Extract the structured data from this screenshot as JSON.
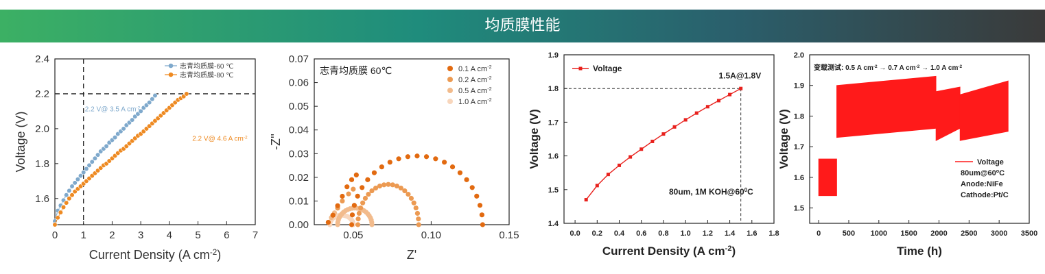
{
  "header": {
    "title": "均质膜性能"
  },
  "chart_data": [
    {
      "id": "chart1",
      "type": "scatter",
      "xlabel": "Current Density (A cm",
      "xlabel_sup": "-2",
      "xlabel_end": ")",
      "ylabel": "Voltage (V)",
      "xlim": [
        0,
        7
      ],
      "ylim": [
        1.45,
        2.4
      ],
      "xticks": [
        "0",
        "1",
        "2",
        "3",
        "4",
        "5",
        "6",
        "7"
      ],
      "yticks": [
        "1.6",
        "1.8",
        "2.0",
        "2.2",
        "2.4"
      ],
      "ref_lines": {
        "x": 1,
        "y": 2.2
      },
      "legend_position": "top-right",
      "series": [
        {
          "name": "志青均质膜-60 ℃",
          "color": "#7fa9cc",
          "x": [
            0.0,
            0.1,
            0.2,
            0.3,
            0.4,
            0.5,
            0.6,
            0.7,
            0.8,
            0.9,
            1.0,
            1.1,
            1.2,
            1.3,
            1.4,
            1.5,
            1.6,
            1.7,
            1.8,
            1.9,
            2.0,
            2.1,
            2.2,
            2.3,
            2.4,
            2.5,
            2.6,
            2.7,
            2.8,
            2.9,
            3.0,
            3.1,
            3.2,
            3.3,
            3.4,
            3.5
          ],
          "y": [
            1.47,
            1.53,
            1.56,
            1.59,
            1.62,
            1.645,
            1.67,
            1.69,
            1.71,
            1.73,
            1.75,
            1.77,
            1.79,
            1.81,
            1.83,
            1.85,
            1.87,
            1.885,
            1.9,
            1.92,
            1.935,
            1.95,
            1.97,
            1.985,
            2.0,
            2.02,
            2.035,
            2.05,
            2.07,
            2.085,
            2.1,
            2.12,
            2.135,
            2.15,
            2.17,
            2.19
          ]
        },
        {
          "name": "志青均质膜-80 ℃",
          "color": "#ee8a22",
          "x": [
            0.0,
            0.1,
            0.2,
            0.3,
            0.4,
            0.5,
            0.6,
            0.7,
            0.8,
            0.9,
            1.0,
            1.1,
            1.2,
            1.3,
            1.4,
            1.5,
            1.6,
            1.7,
            1.8,
            1.9,
            2.0,
            2.1,
            2.2,
            2.3,
            2.4,
            2.5,
            2.6,
            2.7,
            2.8,
            2.9,
            3.0,
            3.1,
            3.2,
            3.3,
            3.4,
            3.5,
            3.6,
            3.7,
            3.8,
            3.9,
            4.0,
            4.1,
            4.2,
            4.3,
            4.4,
            4.5,
            4.6
          ],
          "y": [
            1.45,
            1.49,
            1.52,
            1.55,
            1.575,
            1.6,
            1.62,
            1.64,
            1.655,
            1.67,
            1.685,
            1.7,
            1.715,
            1.73,
            1.745,
            1.76,
            1.775,
            1.79,
            1.8,
            1.815,
            1.83,
            1.845,
            1.86,
            1.875,
            1.885,
            1.9,
            1.915,
            1.93,
            1.945,
            1.96,
            1.97,
            1.985,
            2.0,
            2.015,
            2.03,
            2.045,
            2.06,
            2.075,
            2.09,
            2.105,
            2.12,
            2.135,
            2.15,
            2.165,
            2.175,
            2.185,
            2.2
          ]
        }
      ],
      "annotations": [
        {
          "text": "2.2 V@ 3.5 A cm",
          "sup": "-2",
          "color": "#7fa9cc",
          "x": 1.05,
          "y": 2.1
        },
        {
          "text": "2.2 V@ 4.6 A cm",
          "sup": "-2",
          "color": "#ee8a22",
          "x": 4.8,
          "y": 1.93
        }
      ]
    },
    {
      "id": "chart2",
      "type": "scatter",
      "xlabel": "Z'",
      "ylabel": "-Z''",
      "xlim": [
        0.025,
        0.15
      ],
      "ylim": [
        0,
        0.07
      ],
      "xticks": [
        "0.05",
        "0.10",
        "0.15"
      ],
      "xtick_values": [
        0.05,
        0.1,
        0.15
      ],
      "yticks": [
        "0.00",
        "0.01",
        "0.02",
        "0.03",
        "0.04",
        "0.05",
        "0.06",
        "0.07"
      ],
      "inset_title": "志青均质膜 60℃",
      "legend_position": "top-right",
      "series": [
        {
          "name": "0.1 A cm",
          "sup": "-2",
          "color": "#e26a10",
          "arc": [
            0.049,
            0.133,
            0.029
          ],
          "tail": [
            [
              0.034,
              0.001
            ],
            [
              0.037,
              0.004
            ],
            [
              0.04,
              0.008
            ],
            [
              0.043,
              0.012
            ],
            [
              0.046,
              0.016
            ],
            [
              0.049,
              0.019
            ],
            [
              0.052,
              0.021
            ]
          ]
        },
        {
          "name": "0.2 A cm",
          "sup": "-2",
          "color": "#ec9a52",
          "arc": [
            0.053,
            0.092,
            0.017
          ],
          "tail": [
            [
              0.034,
              0.001
            ],
            [
              0.037,
              0.004
            ],
            [
              0.04,
              0.007
            ],
            [
              0.043,
              0.01
            ],
            [
              0.047,
              0.013
            ],
            [
              0.05,
              0.015
            ]
          ]
        },
        {
          "name": "0.5 A cm",
          "sup": "-2",
          "color": "#f2bb8c",
          "arc": [
            0.04,
            0.062,
            0.007
          ],
          "tail": [
            [
              0.034,
              0.001
            ],
            [
              0.036,
              0.003
            ],
            [
              0.038,
              0.005
            ]
          ]
        },
        {
          "name": "1.0 A cm",
          "sup": "-2",
          "color": "#f8d6bc",
          "arc": [
            0.035,
            0.05,
            0.004
          ],
          "tail": []
        }
      ]
    },
    {
      "id": "chart3",
      "type": "line",
      "xlabel": "Current Density (A cm",
      "xlabel_sup": "-2",
      "xlabel_end": ")",
      "ylabel": "Voltage (V)",
      "xlim": [
        -0.1,
        1.8
      ],
      "ylim": [
        1.4,
        1.9
      ],
      "xticks": [
        "0.0",
        "0.2",
        "0.4",
        "0.6",
        "0.8",
        "1.0",
        "1.2",
        "1.4",
        "1.6",
        "1.8"
      ],
      "xtick_values": [
        0.0,
        0.2,
        0.4,
        0.6,
        0.8,
        1.0,
        1.2,
        1.4,
        1.6,
        1.8
      ],
      "yticks": [
        "1.4",
        "1.5",
        "1.6",
        "1.7",
        "1.8",
        "1.9"
      ],
      "legend_position": "top-left",
      "series": [
        {
          "name": "Voltage",
          "color": "#e8211d",
          "x": [
            0.1,
            0.2,
            0.3,
            0.4,
            0.5,
            0.6,
            0.7,
            0.8,
            0.9,
            1.0,
            1.1,
            1.2,
            1.3,
            1.4,
            1.5
          ],
          "y": [
            1.47,
            1.512,
            1.545,
            1.572,
            1.597,
            1.62,
            1.643,
            1.665,
            1.686,
            1.707,
            1.727,
            1.746,
            1.764,
            1.782,
            1.8
          ]
        }
      ],
      "ref_point": {
        "x": 1.5,
        "y": 1.8
      },
      "annotations": [
        {
          "text": "1.5A@1.8V",
          "x": 1.3,
          "y": 1.83
        },
        {
          "text": "80um, 1M KOH@60",
          "sup": "0",
          "end": "C",
          "x": 0.85,
          "y": 1.485
        }
      ]
    },
    {
      "id": "chart4",
      "type": "line",
      "xlabel": "Time (h)",
      "ylabel": "Voltage (V)",
      "xlim": [
        -150,
        3500
      ],
      "ylim": [
        1.45,
        2.0
      ],
      "xticks": [
        "0",
        "500",
        "1000",
        "1500",
        "2000",
        "2500",
        "3000",
        "3500"
      ],
      "xtick_values": [
        0,
        500,
        1000,
        1500,
        2000,
        2500,
        3000,
        3500
      ],
      "yticks": [
        "1.5",
        "1.6",
        "1.7",
        "1.8",
        "1.9",
        "2.0"
      ],
      "title": "变载测试: 0.5 A cm",
      "title_parts": [
        "-2",
        " → 0.7 A cm",
        "-2",
        " → 1.0 A cm",
        "-2"
      ],
      "legend_position": "bottom-right",
      "series": [
        {
          "name": "Voltage",
          "color": "#ff1a1a",
          "bands": [
            {
              "x0": 0,
              "x1": 300,
              "lo": 1.54,
              "hi": 1.66
            },
            {
              "x0": 300,
              "x1": 1950,
              "lo0": 1.73,
              "lo1": 1.76,
              "hi0": 1.9,
              "hi1": 1.93
            },
            {
              "x0": 1950,
              "x1": 2350,
              "lo0": 1.72,
              "lo1": 1.76,
              "hi0": 1.88,
              "hi1": 1.895
            },
            {
              "x0": 2350,
              "x1": 3150,
              "lo0": 1.72,
              "lo1": 1.75,
              "hi0": 1.87,
              "hi1": 1.915
            }
          ]
        }
      ],
      "notes": [
        "80um@60",
        "Anode:NiFe",
        "Cathode:Pt/C"
      ],
      "note_sup": "o",
      "note_end": "C"
    }
  ]
}
